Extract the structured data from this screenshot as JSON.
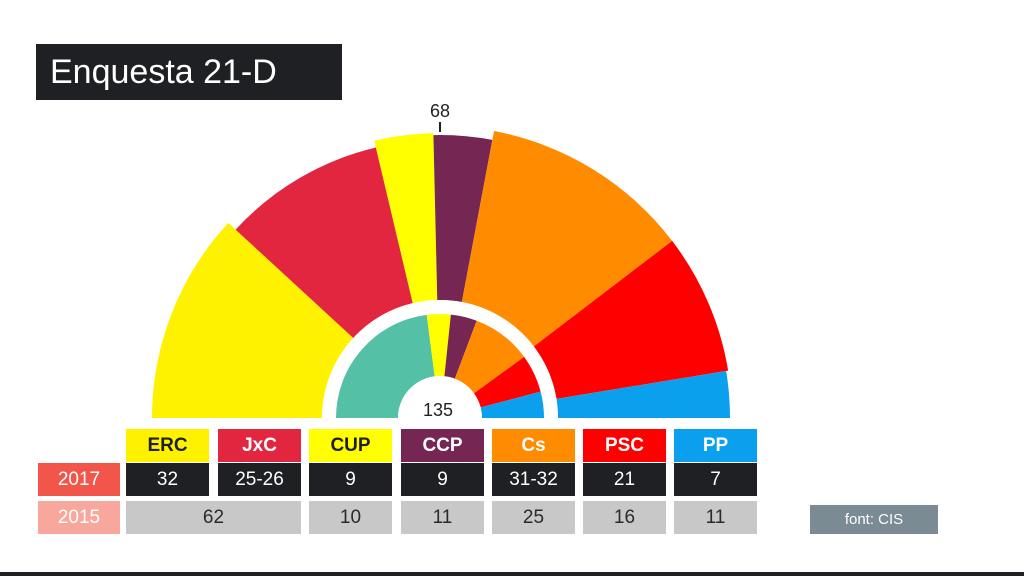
{
  "title": "Enquesta 21-D",
  "source": "font: CIS",
  "colors": {
    "ERC": "#fff200",
    "JxC": "#e3263f",
    "CUP": "#ffff00",
    "CCP": "#762652",
    "Cs": "#ff8c00",
    "PSC": "#ff0000",
    "PP": "#0aa0ee",
    "inner2015_JxSi": "#54c0a6",
    "dark": "#1f2023",
    "light": "#c8c8c8",
    "year2017": "#f2554a",
    "year2015": "#f7a79c"
  },
  "chart_data": {
    "type": "hemicycle",
    "title": "Enquesta 21-D",
    "total_seats": 135,
    "majority": 68,
    "majority_label": "68",
    "total_label": "135",
    "parties": [
      "ERC",
      "JxC",
      "CUP",
      "CCP",
      "Cs",
      "PSC",
      "PP"
    ],
    "series": [
      {
        "name": "2017",
        "values": [
          32,
          25.5,
          9,
          9,
          31.5,
          21,
          7
        ],
        "labels": [
          "32",
          "25-26",
          "9",
          "9",
          "31-32",
          "21",
          "7"
        ]
      },
      {
        "name": "2015",
        "groups": [
          "ERC+JxC",
          "CUP",
          "CCP",
          "Cs",
          "PSC",
          "PP"
        ],
        "values": [
          62,
          10,
          11,
          25,
          16,
          11
        ],
        "labels": [
          "62",
          "10",
          "11",
          "25",
          "16",
          "11"
        ]
      }
    ]
  }
}
